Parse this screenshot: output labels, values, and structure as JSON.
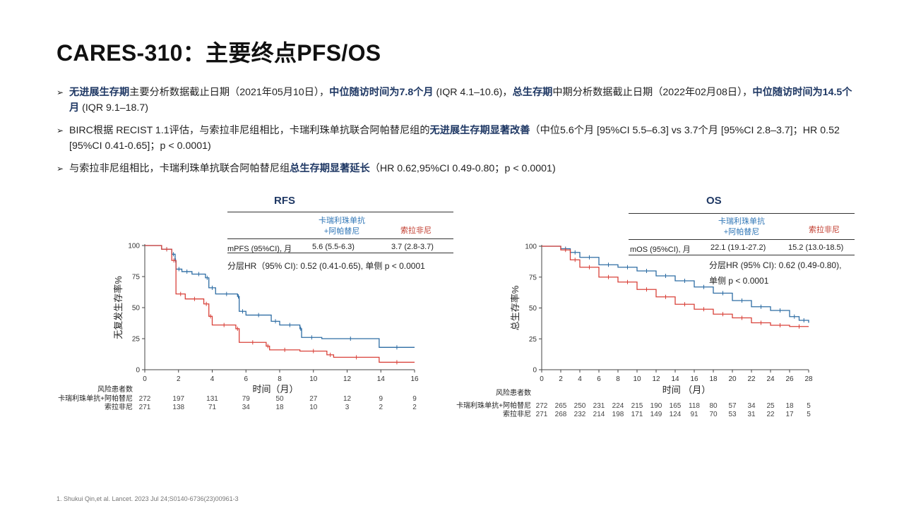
{
  "title": "CARES-310：主要终点PFS/OS",
  "bullets": [
    {
      "b1": "无进展生存期",
      "t1": "主要分析数据截止日期（2021年05月10日），",
      "b2": "中位随访时间为7.8个月",
      "t2": " (IQR 4.1–10.6)，",
      "b3": "总生存期",
      "t3": "中期分析数据截止日期（2022年02月08日），",
      "b4": "中位随访时间为14.5个月",
      "t4": " (IQR  9.1–18.7)"
    },
    {
      "t1": "BIRC根据 RECIST 1.1评估，与索拉非尼组相比，卡瑞利珠单抗联合阿帕替尼组的",
      "b1": "无进展生存期显著改善",
      "t2": "（中位5.6个月 [95%CI 5.5–6.3] vs 3.7个月 [95%CI 2.8–3.7]；HR 0.52  [95%CI 0.41-0.65]；p < 0.0001)"
    },
    {
      "t1": "与索拉非尼组相比，卡瑞利珠单抗联合阿帕替尼组",
      "b1": "总生存期显著延长",
      "t2": "（HR 0.62,95%CI 0.49-0.80；p < 0.0001)"
    }
  ],
  "rfs_table": {
    "col1": [
      "卡瑞利珠单抗",
      "+阿帕替尼"
    ],
    "col2": "索拉非尼",
    "row_label": "mPFS (95%CI), 月",
    "val1": "5.6 (5.5-6.3)",
    "val2": "3.7 (2.8-3.7)",
    "hr": "分层HR（95% CI):  0.52 (0.41-0.65), 单侧 p  < 0.0001"
  },
  "os_table": {
    "col1": [
      "卡瑞利珠单抗",
      "+阿帕替尼"
    ],
    "col2": "索拉非尼",
    "row_label": "mOS (95%CI), 月",
    "val1": "22.1 (19.1-27.2)",
    "val2": "15.2 (13.0-18.5)",
    "hr1": "分层HR (95% CI): 0.62 (0.49-0.80),",
    "hr2": "单侧 p  < 0.0001"
  },
  "footnote": "1.   Shukui Qin,et al. Lancet. 2023 Jul 24;S0140-6736(23)00961-3",
  "colors": {
    "combo": "#2e6da4",
    "sorafenib": "#d9423a",
    "accent": "#1f3864"
  },
  "chart_data": [
    {
      "type": "line",
      "title": "RFS",
      "ylabel": "无复发生存率%",
      "xlabel": "时间（月）",
      "xlim": [
        0,
        16
      ],
      "ylim": [
        0,
        100
      ],
      "xticks": [
        0,
        2,
        4,
        6,
        8,
        10,
        12,
        14,
        16
      ],
      "yticks": [
        0,
        25,
        50,
        75,
        100
      ],
      "risk_header": "风险患者数",
      "series": [
        {
          "name": "卡瑞利珠单抗+阿帕替尼",
          "color": "#2e6da4",
          "x": [
            0,
            1.0,
            1.6,
            1.8,
            1.85,
            2.2,
            2.8,
            3.6,
            3.8,
            4.2,
            5.5,
            5.6,
            6.0,
            7.5,
            8.0,
            9.2,
            9.3,
            10.5,
            13.9,
            16
          ],
          "y": [
            100,
            97,
            93,
            88,
            81,
            79,
            77,
            74,
            66,
            61,
            59,
            47,
            44,
            39,
            36,
            33,
            26,
            25,
            18,
            18
          ],
          "risk": [
            "272",
            "197",
            "131",
            "79",
            "50",
            "27",
            "12",
            "9",
            "9"
          ]
        },
        {
          "name": "索拉非尼",
          "color": "#d9423a",
          "x": [
            0,
            1.0,
            1.6,
            1.85,
            2.4,
            3.5,
            3.8,
            4.0,
            5.4,
            5.6,
            7.2,
            7.4,
            9.2,
            10.8,
            11.2,
            13.9,
            16
          ],
          "y": [
            100,
            97,
            88,
            61,
            57,
            53,
            43,
            36,
            33,
            22,
            19,
            16,
            15,
            12,
            10,
            6,
            6
          ],
          "risk": [
            "271",
            "138",
            "71",
            "34",
            "18",
            "10",
            "3",
            "2",
            "2"
          ]
        }
      ]
    },
    {
      "type": "line",
      "title": "OS",
      "ylabel": "总生存率%",
      "xlabel": "时间 （月）",
      "xlim": [
        0,
        28
      ],
      "ylim": [
        0,
        100
      ],
      "xticks": [
        0,
        2,
        4,
        6,
        8,
        10,
        12,
        14,
        16,
        18,
        20,
        22,
        24,
        26,
        28
      ],
      "yticks": [
        0,
        25,
        50,
        75,
        100
      ],
      "risk_header": "风险患者数",
      "series": [
        {
          "name": "卡瑞利珠单抗+阿帕替尼",
          "color": "#2e6da4",
          "x": [
            0,
            2,
            3,
            4,
            6,
            8,
            10,
            12,
            14,
            16,
            18,
            20,
            22,
            24,
            26,
            27,
            28
          ],
          "y": [
            100,
            98,
            95,
            91,
            85,
            83,
            80,
            76,
            72,
            67,
            62,
            56,
            51,
            48,
            43,
            40,
            38
          ],
          "risk": [
            "272",
            "265",
            "250",
            "231",
            "224",
            "215",
            "190",
            "165",
            "118",
            "80",
            "57",
            "34",
            "25",
            "18",
            "5"
          ]
        },
        {
          "name": "索拉非尼",
          "color": "#d9423a",
          "x": [
            0,
            2,
            3,
            4,
            6,
            8,
            10,
            12,
            14,
            16,
            18,
            20,
            22,
            24,
            26,
            28
          ],
          "y": [
            100,
            97,
            89,
            83,
            75,
            71,
            65,
            59,
            53,
            49,
            45,
            42,
            38,
            36,
            35,
            35
          ],
          "risk": [
            "271",
            "268",
            "232",
            "214",
            "198",
            "171",
            "149",
            "124",
            "91",
            "70",
            "53",
            "31",
            "22",
            "17",
            "5"
          ]
        }
      ]
    }
  ]
}
